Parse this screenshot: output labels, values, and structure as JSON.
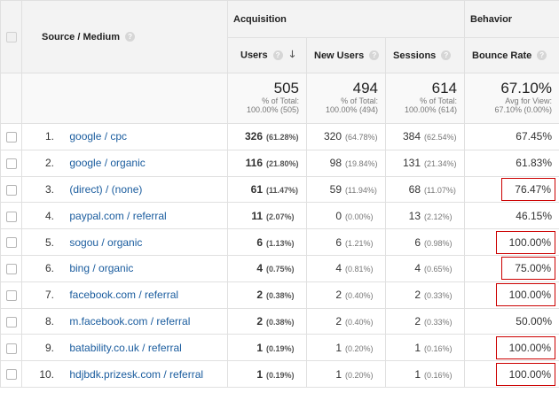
{
  "headers": {
    "source_medium": "Source / Medium",
    "acquisition": "Acquisition",
    "behavior": "Behavior",
    "users": "Users",
    "new_users": "New Users",
    "sessions": "Sessions",
    "bounce_rate": "Bounce Rate"
  },
  "totals": {
    "users": {
      "value": "505",
      "l1": "% of Total:",
      "l2": "100.00% (505)"
    },
    "new_users": {
      "value": "494",
      "l1": "% of Total:",
      "l2": "100.00% (494)"
    },
    "sessions": {
      "value": "614",
      "l1": "% of Total:",
      "l2": "100.00% (614)"
    },
    "bounce_rate": {
      "value": "67.10%",
      "l1": "Avg for View:",
      "l2": "67.10% (0.00%)"
    }
  },
  "rows": [
    {
      "n": "1.",
      "source": "google / cpc",
      "users": "326",
      "users_pct": "(61.28%)",
      "new_users": "320",
      "new_users_pct": "(64.78%)",
      "sessions": "384",
      "sessions_pct": "(62.54%)",
      "bounce": "67.45%",
      "highlighted": false
    },
    {
      "n": "2.",
      "source": "google / organic",
      "users": "116",
      "users_pct": "(21.80%)",
      "new_users": "98",
      "new_users_pct": "(19.84%)",
      "sessions": "131",
      "sessions_pct": "(21.34%)",
      "bounce": "61.83%",
      "highlighted": false
    },
    {
      "n": "3.",
      "source": "(direct) / (none)",
      "users": "61",
      "users_pct": "(11.47%)",
      "new_users": "59",
      "new_users_pct": "(11.94%)",
      "sessions": "68",
      "sessions_pct": "(11.07%)",
      "bounce": "76.47%",
      "highlighted": true
    },
    {
      "n": "4.",
      "source": "paypal.com / referral",
      "users": "11",
      "users_pct": "(2.07%)",
      "new_users": "0",
      "new_users_pct": "(0.00%)",
      "sessions": "13",
      "sessions_pct": "(2.12%)",
      "bounce": "46.15%",
      "highlighted": false
    },
    {
      "n": "5.",
      "source": "sogou / organic",
      "users": "6",
      "users_pct": "(1.13%)",
      "new_users": "6",
      "new_users_pct": "(1.21%)",
      "sessions": "6",
      "sessions_pct": "(0.98%)",
      "bounce": "100.00%",
      "highlighted": true
    },
    {
      "n": "6.",
      "source": "bing / organic",
      "users": "4",
      "users_pct": "(0.75%)",
      "new_users": "4",
      "new_users_pct": "(0.81%)",
      "sessions": "4",
      "sessions_pct": "(0.65%)",
      "bounce": "75.00%",
      "highlighted": true
    },
    {
      "n": "7.",
      "source": "facebook.com / referral",
      "users": "2",
      "users_pct": "(0.38%)",
      "new_users": "2",
      "new_users_pct": "(0.40%)",
      "sessions": "2",
      "sessions_pct": "(0.33%)",
      "bounce": "100.00%",
      "highlighted": true
    },
    {
      "n": "8.",
      "source": "m.facebook.com / referral",
      "users": "2",
      "users_pct": "(0.38%)",
      "new_users": "2",
      "new_users_pct": "(0.40%)",
      "sessions": "2",
      "sessions_pct": "(0.33%)",
      "bounce": "50.00%",
      "highlighted": false
    },
    {
      "n": "9.",
      "source": "batability.co.uk / referral",
      "users": "1",
      "users_pct": "(0.19%)",
      "new_users": "1",
      "new_users_pct": "(0.20%)",
      "sessions": "1",
      "sessions_pct": "(0.16%)",
      "bounce": "100.00%",
      "highlighted": true
    },
    {
      "n": "10.",
      "source": "hdjbdk.prizesk.com / referral",
      "users": "1",
      "users_pct": "(0.19%)",
      "new_users": "1",
      "new_users_pct": "(0.20%)",
      "sessions": "1",
      "sessions_pct": "(0.16%)",
      "bounce": "100.00%",
      "highlighted": true
    }
  ],
  "colors": {
    "link": "#1a5c9e",
    "highlight_border": "#cc0000",
    "header_bg": "#f3f3f3"
  },
  "icons": {
    "help": "question-mark-circle",
    "sort": "arrow-down"
  }
}
